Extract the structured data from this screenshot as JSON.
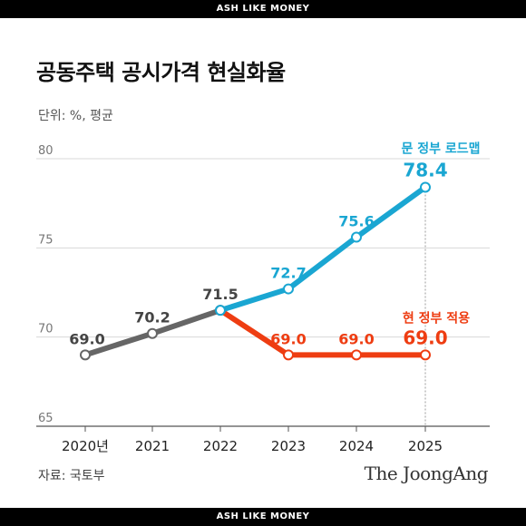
{
  "banner_top": "ASH LIKE MONEY",
  "banner_bottom": "ASH LIKE MONEY",
  "title": "공동주택 공시가격 현실화율",
  "unit": "단위: %, 평균",
  "source": "자료: 국토부",
  "brand": "The JoongAng",
  "colors": {
    "history": "#666666",
    "moon": "#1aa6d2",
    "current": "#ee3d12",
    "grid": "#d8d8d8"
  },
  "chart_data": {
    "type": "line",
    "title": "공동주택 공시가격 현실화율",
    "x": [
      "2020년",
      "2021",
      "2022",
      "2023",
      "2024",
      "2025"
    ],
    "ylim": [
      65,
      80
    ],
    "yticks": [
      "65",
      "70",
      "75",
      "80"
    ],
    "grid": true,
    "series": [
      {
        "key": "history",
        "values": [
          69.0,
          70.2,
          71.5,
          null,
          null,
          null
        ],
        "labels": [
          "69.0",
          "70.2",
          "71.5",
          "",
          "",
          ""
        ]
      },
      {
        "key": "moon",
        "name": "문 정부 로드맵",
        "values": [
          null,
          null,
          71.5,
          72.7,
          75.6,
          78.4
        ],
        "labels": [
          "",
          "",
          "",
          "72.7",
          "75.6",
          "78.4"
        ]
      },
      {
        "key": "current",
        "name": "현 정부 적용",
        "values": [
          null,
          null,
          71.5,
          69.0,
          69.0,
          69.0
        ],
        "labels": [
          "",
          "",
          "",
          "69.0",
          "69.0",
          "69.0"
        ]
      }
    ]
  }
}
